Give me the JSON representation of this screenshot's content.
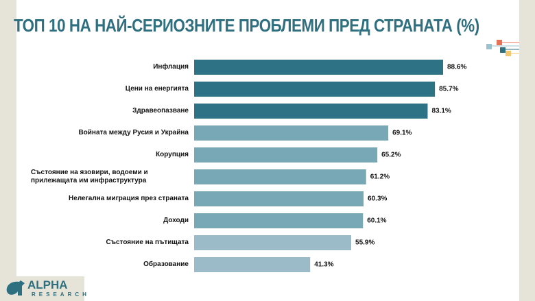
{
  "chart_data": {
    "type": "bar",
    "orientation": "horizontal",
    "title": "ТОП 10 НА НАЙ-СЕРИОЗНИТЕ ПРОБЛЕМИ ПРЕД СТРАНАТА (%)",
    "categories": [
      "Инфлация",
      "Цени на енергията",
      "Здравеопазване",
      "Войната между Русия и Украйна",
      "Корупция",
      "Състояние на язовири, водоеми и прилежащата им инфраструктура",
      "Нелегална миграция през страната",
      "Доходи",
      "Състояние на пътищата",
      "Образование"
    ],
    "values": [
      88.6,
      85.7,
      83.1,
      69.1,
      65.2,
      61.2,
      60.3,
      60.1,
      55.9,
      41.3
    ],
    "value_labels": [
      "88.6%",
      "85.7%",
      "83.1%",
      "69.1%",
      "65.2%",
      "61.2%",
      "60.3%",
      "60.1%",
      "55.9%",
      "41.3%"
    ],
    "bar_colors": [
      "#2e7385",
      "#2e7385",
      "#2e7385",
      "#78a7b5",
      "#78a7b5",
      "#78a7b5",
      "#78a7b5",
      "#78a7b5",
      "#9abbc7",
      "#9abbc7"
    ],
    "xlim": [
      0,
      100
    ],
    "grid": false,
    "legend": "none"
  },
  "logo": {
    "name": "ALPHA",
    "sub": "RESEARCH"
  },
  "colors": {
    "title": "#2e6f80",
    "background_strip": "#e6e4d8",
    "deco": [
      "#e8715a",
      "#9cc3cd",
      "#2e6f80",
      "#f2c66d"
    ]
  }
}
